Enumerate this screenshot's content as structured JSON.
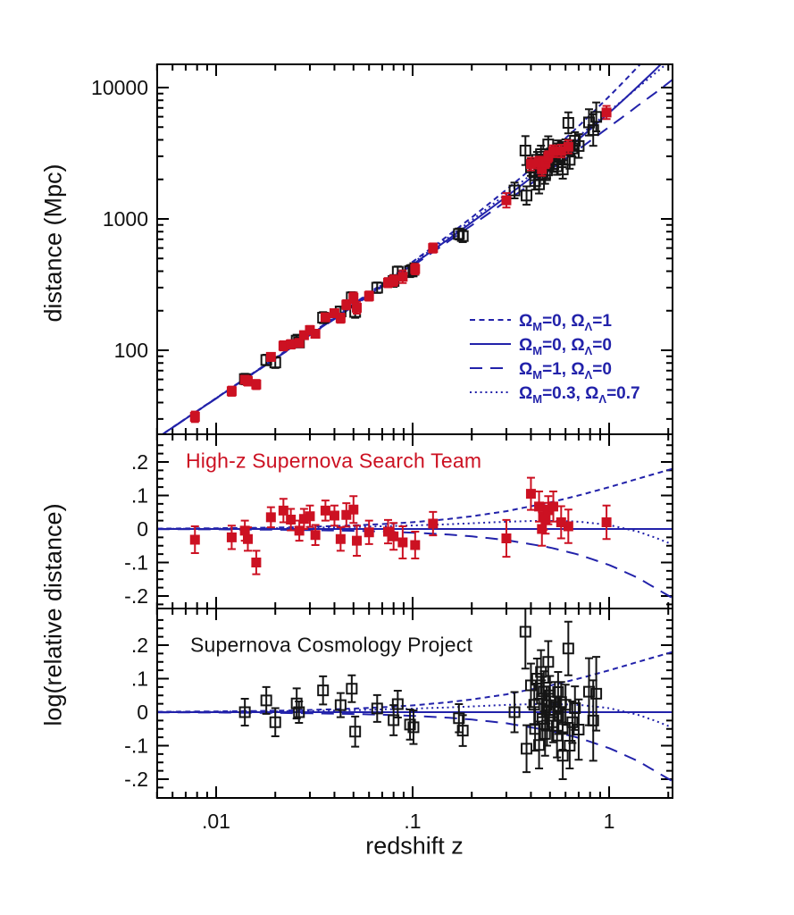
{
  "figure": {
    "background": "#ffffff",
    "frame_color": "#000000",
    "curve_color": "#2222aa",
    "highz_color": "#cc1122",
    "scp_color": "#151515"
  },
  "labels": {
    "y_top": "distance (Mpc)",
    "y_bottom": "log(relative distance)",
    "x": "redshift z",
    "middle_title": "High-z Supernova Search Team",
    "bottom_title": "Supernova Cosmology Project"
  },
  "legend": {
    "omega": "Ω",
    "sub_m": "M",
    "sub_lambda": "Λ",
    "equals": "=",
    "separator": ", ",
    "entries": [
      {
        "style": "short-dash",
        "m": "0",
        "l": "1"
      },
      {
        "style": "solid",
        "m": "0",
        "l": "0"
      },
      {
        "style": "long-dash",
        "m": "1",
        "l": "0"
      },
      {
        "style": "dotted",
        "m": "0.3",
        "l": "0.7"
      }
    ]
  },
  "chart_data": {
    "type": "scatter",
    "title": "",
    "xlabel": "redshift z",
    "x_axis": {
      "scale": "log",
      "range": [
        0.005,
        2.1
      ],
      "major_tick_values": [
        0.01,
        0.1,
        1
      ],
      "major_tick_labels": [
        ".01",
        ".1",
        "1"
      ]
    },
    "panels": [
      {
        "id": "hubble",
        "ylabel": "distance (Mpc)",
        "yscale": "log",
        "yrange": [
          23,
          15000
        ],
        "ytick_values": [
          100,
          1000,
          10000
        ],
        "ytick_labels": [
          "100",
          "1000",
          "10000"
        ],
        "grid": false
      },
      {
        "id": "highz-residuals",
        "title": "High-z Supernova Search Team",
        "yscale": "linear",
        "yrange": [
          -0.237,
          0.283
        ],
        "ytick_values": [
          0.2,
          0.1,
          0,
          -0.1,
          -0.2
        ],
        "ytick_labels": [
          ".2",
          ".1",
          "0",
          "-.1",
          "-.2"
        ],
        "minor_tick_step": 0.025,
        "grid": false
      },
      {
        "id": "scp-residuals",
        "title": "Supernova Cosmology Project",
        "yscale": "linear",
        "yrange": [
          -0.256,
          0.309
        ],
        "ytick_values": [
          0.2,
          0.1,
          0,
          -0.1,
          -0.2
        ],
        "ytick_labels": [
          ".2",
          ".1",
          "0",
          "-.1",
          "-.2"
        ],
        "minor_tick_step": 0.025,
        "grid": false
      }
    ],
    "reference": {
      "c_over_H0_mpc": 4283,
      "distance_rule": "distance_Mpc = c_over_H0_mpc * z * (1 + z/2) * 10^residual"
    },
    "series": [
      {
        "name": "High-z Supernova Search Team",
        "marker": "filled-square",
        "color": "#cc1122",
        "shown_in": [
          "hubble",
          "highz-residuals"
        ],
        "points_zre": [
          [
            0.0078,
            -0.032,
            0.04
          ],
          [
            0.012,
            -0.025,
            0.035
          ],
          [
            0.014,
            -0.005,
            0.03
          ],
          [
            0.0145,
            -0.03,
            0.035
          ],
          [
            0.016,
            -0.1,
            0.035
          ],
          [
            0.019,
            0.035,
            0.03
          ],
          [
            0.022,
            0.055,
            0.035
          ],
          [
            0.024,
            0.028,
            0.032
          ],
          [
            0.0265,
            -0.005,
            0.03
          ],
          [
            0.028,
            0.03,
            0.03
          ],
          [
            0.03,
            0.038,
            0.032
          ],
          [
            0.032,
            -0.018,
            0.03
          ],
          [
            0.036,
            0.055,
            0.03
          ],
          [
            0.04,
            0.04,
            0.03
          ],
          [
            0.043,
            -0.03,
            0.035
          ],
          [
            0.046,
            0.042,
            0.035
          ],
          [
            0.05,
            0.058,
            0.04
          ],
          [
            0.052,
            -0.035,
            0.045
          ],
          [
            0.06,
            -0.01,
            0.035
          ],
          [
            0.075,
            -0.008,
            0.035
          ],
          [
            0.08,
            -0.022,
            0.04
          ],
          [
            0.089,
            -0.04,
            0.048
          ],
          [
            0.103,
            -0.048,
            0.04
          ],
          [
            0.127,
            0.016,
            0.035
          ],
          [
            0.3,
            -0.028,
            0.055
          ],
          [
            0.4,
            0.105,
            0.048
          ],
          [
            0.44,
            0.067,
            0.045
          ],
          [
            0.455,
            0.0,
            0.05
          ],
          [
            0.465,
            0.038,
            0.04
          ],
          [
            0.475,
            0.028,
            0.042
          ],
          [
            0.49,
            0.056,
            0.042
          ],
          [
            0.52,
            0.067,
            0.045
          ],
          [
            0.57,
            0.02,
            0.048
          ],
          [
            0.62,
            0.008,
            0.05
          ],
          [
            0.97,
            0.02,
            0.05
          ]
        ]
      },
      {
        "name": "Supernova Cosmology Project",
        "marker": "open-square",
        "color": "#151515",
        "shown_in": [
          "hubble",
          "scp-residuals"
        ],
        "points_zre": [
          [
            0.014,
            0.0,
            0.04
          ],
          [
            0.018,
            0.035,
            0.04
          ],
          [
            0.02,
            -0.03,
            0.042
          ],
          [
            0.0257,
            0.026,
            0.045
          ],
          [
            0.0264,
            0.0,
            0.032
          ],
          [
            0.035,
            0.065,
            0.042
          ],
          [
            0.043,
            0.021,
            0.036
          ],
          [
            0.049,
            0.07,
            0.04
          ],
          [
            0.051,
            -0.058,
            0.045
          ],
          [
            0.066,
            0.011,
            0.04
          ],
          [
            0.08,
            -0.024,
            0.045
          ],
          [
            0.084,
            0.024,
            0.04
          ],
          [
            0.097,
            -0.037,
            0.045
          ],
          [
            0.101,
            -0.045,
            0.05
          ],
          [
            0.172,
            -0.018,
            0.042
          ],
          [
            0.18,
            -0.055,
            0.046
          ],
          [
            0.33,
            0.0,
            0.06
          ],
          [
            0.375,
            0.24,
            0.11
          ],
          [
            0.38,
            -0.109,
            0.07
          ],
          [
            0.4,
            0.08,
            0.065
          ],
          [
            0.416,
            0.022,
            0.06
          ],
          [
            0.42,
            -0.05,
            0.065
          ],
          [
            0.43,
            0.1,
            0.06
          ],
          [
            0.44,
            -0.098,
            0.07
          ],
          [
            0.45,
            0.12,
            0.065
          ],
          [
            0.455,
            0.04,
            0.055
          ],
          [
            0.458,
            -0.02,
            0.06
          ],
          [
            0.465,
            0.062,
            0.06
          ],
          [
            0.472,
            -0.065,
            0.065
          ],
          [
            0.48,
            0.021,
            0.055
          ],
          [
            0.483,
            -0.04,
            0.06
          ],
          [
            0.49,
            0.15,
            0.062
          ],
          [
            0.495,
            0.0,
            0.055
          ],
          [
            0.5,
            0.05,
            0.058
          ],
          [
            0.52,
            -0.03,
            0.06
          ],
          [
            0.53,
            0.032,
            0.058
          ],
          [
            0.543,
            -0.07,
            0.065
          ],
          [
            0.55,
            0.06,
            0.06
          ],
          [
            0.552,
            -0.01,
            0.055
          ],
          [
            0.57,
            0.03,
            0.06
          ],
          [
            0.58,
            -0.05,
            0.062
          ],
          [
            0.581,
            -0.13,
            0.07
          ],
          [
            0.6,
            0.022,
            0.06
          ],
          [
            0.62,
            0.19,
            0.08
          ],
          [
            0.63,
            -0.1,
            0.068
          ],
          [
            0.65,
            -0.03,
            0.062
          ],
          [
            0.67,
            0.012,
            0.065
          ],
          [
            0.7,
            -0.052,
            0.09
          ],
          [
            0.79,
            0.061,
            0.1
          ],
          [
            0.83,
            -0.025,
            0.12
          ],
          [
            0.86,
            0.055,
            0.11
          ]
        ]
      }
    ],
    "models": [
      {
        "name": "OmegaM=0, OmegaL=1",
        "style": "short-dash",
        "log_ratio_samples": [
          [
            0.005,
            0.0011
          ],
          [
            0.01,
            0.0022
          ],
          [
            0.02,
            0.0043
          ],
          [
            0.03,
            0.0064
          ],
          [
            0.05,
            0.0106
          ],
          [
            0.07,
            0.0146
          ],
          [
            0.1,
            0.0202
          ],
          [
            0.15,
            0.0293
          ],
          [
            0.2,
            0.0378
          ],
          [
            0.3,
            0.0532
          ],
          [
            0.5,
            0.0792
          ],
          [
            0.7,
            0.1001
          ],
          [
            1.0,
            0.1249
          ],
          [
            1.4,
            0.1498
          ],
          [
            2.1,
            0.1796
          ]
        ]
      },
      {
        "name": "OmegaM=0, OmegaL=0",
        "style": "solid",
        "log_ratio_samples": [
          [
            0.005,
            0
          ],
          [
            0.05,
            0
          ],
          [
            0.5,
            0
          ],
          [
            2.1,
            0
          ]
        ]
      },
      {
        "name": "OmegaM=1, OmegaL=0",
        "style": "long-dash",
        "log_ratio_samples": [
          [
            0.005,
            -0.0005
          ],
          [
            0.01,
            -0.0011
          ],
          [
            0.02,
            -0.0022
          ],
          [
            0.03,
            -0.0033
          ],
          [
            0.05,
            -0.0055
          ],
          [
            0.07,
            -0.0076
          ],
          [
            0.1,
            -0.011
          ],
          [
            0.15,
            -0.0165
          ],
          [
            0.2,
            -0.022
          ],
          [
            0.3,
            -0.0331
          ],
          [
            0.5,
            -0.0551
          ],
          [
            0.7,
            -0.0765
          ],
          [
            1.0,
            -0.1072
          ],
          [
            1.4,
            -0.1457
          ],
          [
            2.1,
            -0.2061
          ]
        ]
      },
      {
        "name": "OmegaM=0.3, OmegaL=0.7",
        "style": "dotted",
        "log_ratio_samples": [
          [
            0.005,
            0.0006
          ],
          [
            0.01,
            0.0012
          ],
          [
            0.02,
            0.0024
          ],
          [
            0.03,
            0.0036
          ],
          [
            0.05,
            0.0059
          ],
          [
            0.07,
            0.0082
          ],
          [
            0.1,
            0.0105
          ],
          [
            0.15,
            0.014
          ],
          [
            0.2,
            0.017
          ],
          [
            0.3,
            0.0217
          ],
          [
            0.4,
            0.0238
          ],
          [
            0.5,
            0.0243
          ],
          [
            0.7,
            0.0221
          ],
          [
            1.0,
            0.012
          ],
          [
            1.4,
            -0.0077
          ],
          [
            1.7,
            -0.025
          ],
          [
            2.1,
            -0.046
          ]
        ]
      }
    ]
  }
}
